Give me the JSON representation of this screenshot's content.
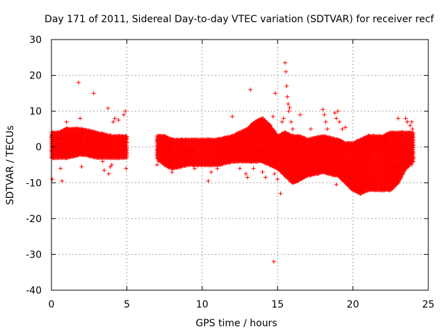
{
  "chart_data": {
    "type": "scatter",
    "title": "Day 171 of 2011, Sidereal Day-to-day VTEC variation (SDTVAR) for receiver recf",
    "xlabel": "GPS time / hours",
    "ylabel": "SDTVAR / TECUs",
    "xlim": [
      0,
      25
    ],
    "ylim": [
      -40,
      30
    ],
    "xticks": [
      0,
      5,
      10,
      15,
      20,
      25
    ],
    "yticks": [
      -40,
      -30,
      -20,
      -10,
      0,
      10,
      20,
      30
    ],
    "grid": true,
    "marker": "+",
    "series_color": "#ff0000",
    "bands": [
      {
        "x": [
          0.0,
          0.5,
          1.0,
          2.0,
          3.0,
          4.0,
          5.0
        ],
        "y_top": [
          4,
          4,
          5,
          5,
          4,
          3,
          3
        ],
        "y_bottom": [
          -3,
          -3,
          -3,
          -2,
          -3,
          -3,
          -3
        ]
      },
      {
        "x": [
          7.0,
          7.5,
          8.0,
          9.0,
          10.0,
          11.0,
          12.0,
          12.5,
          13.0,
          13.5,
          14.0,
          14.5,
          15.0,
          15.5,
          16.0,
          16.5,
          17.0,
          18.0,
          19.0,
          19.5,
          20.0,
          20.5,
          21.0,
          22.0,
          22.5,
          23.0,
          23.5,
          24.0
        ],
        "y_top": [
          3,
          3,
          2,
          2,
          2,
          2,
          3,
          4,
          5,
          7,
          8,
          6,
          3,
          4,
          3,
          3,
          2,
          3,
          2,
          1,
          1,
          2,
          3,
          3,
          4,
          4,
          4,
          4
        ],
        "y_bottom": [
          -3,
          -5,
          -6,
          -5,
          -5,
          -5,
          -4,
          -4,
          -4,
          -4,
          -4,
          -5,
          -6,
          -8,
          -10,
          -9,
          -8,
          -7,
          -8,
          -10,
          -12,
          -13,
          -12,
          -12,
          -12,
          -10,
          -6,
          -4
        ]
      }
    ],
    "points": [
      {
        "x": 0.05,
        "y": -9
      },
      {
        "x": 0.3,
        "y": 3
      },
      {
        "x": 0.6,
        "y": -6
      },
      {
        "x": 0.7,
        "y": -9.5
      },
      {
        "x": 1.0,
        "y": 7
      },
      {
        "x": 1.8,
        "y": 18
      },
      {
        "x": 1.9,
        "y": 8
      },
      {
        "x": 2.0,
        "y": -5.5
      },
      {
        "x": 2.1,
        "y": 4
      },
      {
        "x": 2.8,
        "y": 15
      },
      {
        "x": 3.4,
        "y": -4
      },
      {
        "x": 3.5,
        "y": -6.5
      },
      {
        "x": 3.75,
        "y": 10.8
      },
      {
        "x": 3.8,
        "y": -7.5
      },
      {
        "x": 3.9,
        "y": -5.5
      },
      {
        "x": 4.0,
        "y": -5
      },
      {
        "x": 4.1,
        "y": 7
      },
      {
        "x": 4.2,
        "y": 8
      },
      {
        "x": 4.45,
        "y": 7.5
      },
      {
        "x": 4.8,
        "y": 9
      },
      {
        "x": 4.9,
        "y": 10
      },
      {
        "x": 4.95,
        "y": -6
      },
      {
        "x": 7.0,
        "y": -5
      },
      {
        "x": 7.1,
        "y": -4
      },
      {
        "x": 7.2,
        "y": 3
      },
      {
        "x": 8.0,
        "y": -7
      },
      {
        "x": 9.5,
        "y": -6
      },
      {
        "x": 10.4,
        "y": -9.5
      },
      {
        "x": 10.6,
        "y": -7
      },
      {
        "x": 11.0,
        "y": -6
      },
      {
        "x": 12.0,
        "y": 8.5
      },
      {
        "x": 12.5,
        "y": -6
      },
      {
        "x": 12.9,
        "y": -7.5
      },
      {
        "x": 13.0,
        "y": -8.5
      },
      {
        "x": 13.2,
        "y": 16
      },
      {
        "x": 13.4,
        "y": -6
      },
      {
        "x": 14.0,
        "y": -7
      },
      {
        "x": 14.2,
        "y": -8.5
      },
      {
        "x": 14.7,
        "y": 8.5
      },
      {
        "x": 14.75,
        "y": -32
      },
      {
        "x": 14.8,
        "y": -7.5
      },
      {
        "x": 14.85,
        "y": 15
      },
      {
        "x": 15.0,
        "y": -9
      },
      {
        "x": 15.2,
        "y": -13
      },
      {
        "x": 15.3,
        "y": 7
      },
      {
        "x": 15.4,
        "y": 8
      },
      {
        "x": 15.5,
        "y": 23.5
      },
      {
        "x": 15.55,
        "y": 21
      },
      {
        "x": 15.6,
        "y": 17
      },
      {
        "x": 15.65,
        "y": 14
      },
      {
        "x": 15.7,
        "y": 12
      },
      {
        "x": 15.75,
        "y": 10
      },
      {
        "x": 15.8,
        "y": 11
      },
      {
        "x": 15.9,
        "y": 7
      },
      {
        "x": 16.0,
        "y": 5
      },
      {
        "x": 16.5,
        "y": 9
      },
      {
        "x": 17.2,
        "y": 5
      },
      {
        "x": 18.0,
        "y": 10.5
      },
      {
        "x": 18.1,
        "y": 9
      },
      {
        "x": 18.2,
        "y": 7
      },
      {
        "x": 18.3,
        "y": 5
      },
      {
        "x": 18.8,
        "y": 9.5
      },
      {
        "x": 18.9,
        "y": 8
      },
      {
        "x": 19.0,
        "y": 10
      },
      {
        "x": 19.1,
        "y": 7
      },
      {
        "x": 19.3,
        "y": 5
      },
      {
        "x": 19.5,
        "y": 5.5
      },
      {
        "x": 18.9,
        "y": -10.5
      },
      {
        "x": 21.0,
        "y": -12
      },
      {
        "x": 22.3,
        "y": -11.5
      },
      {
        "x": 22.2,
        "y": -10
      },
      {
        "x": 23.0,
        "y": 8
      },
      {
        "x": 23.5,
        "y": 8
      },
      {
        "x": 23.6,
        "y": 7
      },
      {
        "x": 23.8,
        "y": 6
      },
      {
        "x": 23.9,
        "y": 7
      },
      {
        "x": 23.95,
        "y": 5
      },
      {
        "x": 23.9,
        "y": -5
      },
      {
        "x": 24.0,
        "y": -3
      }
    ]
  }
}
